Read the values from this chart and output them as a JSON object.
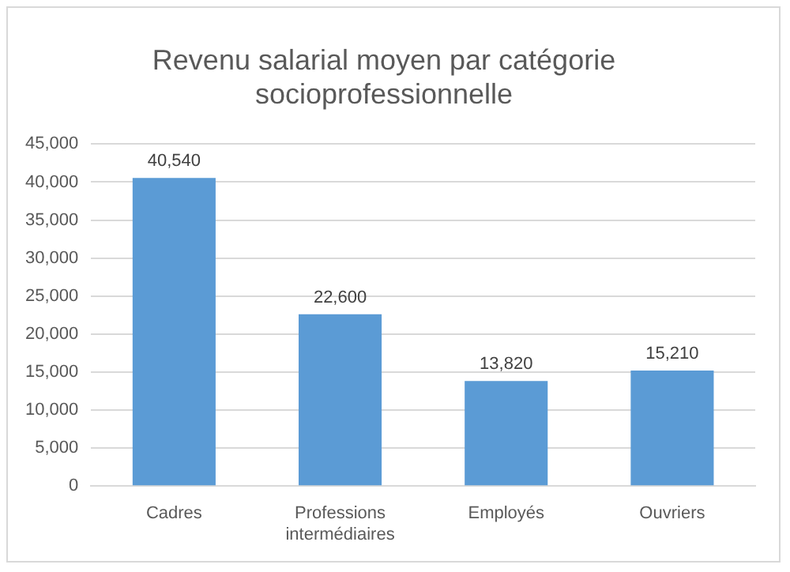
{
  "chart_data": {
    "type": "bar",
    "title": [
      "Revenu salarial moyen par catégorie",
      "socioprofessionnelle"
    ],
    "categories": [
      "Cadres",
      "Professions intermédiaires",
      "Employés",
      "Ouvriers"
    ],
    "values": [
      40540,
      22600,
      13820,
      15210
    ],
    "value_labels": [
      "40,540",
      "22,600",
      "13,820",
      "15,210"
    ],
    "color": "#5b9bd5",
    "ylim": [
      0,
      45000
    ],
    "yticks": [
      0,
      {
        "value": 5000,
        "label": "5,000"
      },
      {
        "value": 10000,
        "label": "10,000"
      },
      {
        "value": 15000,
        "label": "15,000"
      },
      {
        "value": 20000,
        "label": "20,000"
      },
      {
        "value": 25000,
        "label": "25,000"
      },
      {
        "value": 30000,
        "label": "30,000"
      },
      {
        "value": 35000,
        "label": "35,000"
      },
      {
        "value": 40000,
        "label": "40,000"
      },
      {
        "value": 45000,
        "label": "45,000"
      }
    ],
    "grid": "y"
  }
}
